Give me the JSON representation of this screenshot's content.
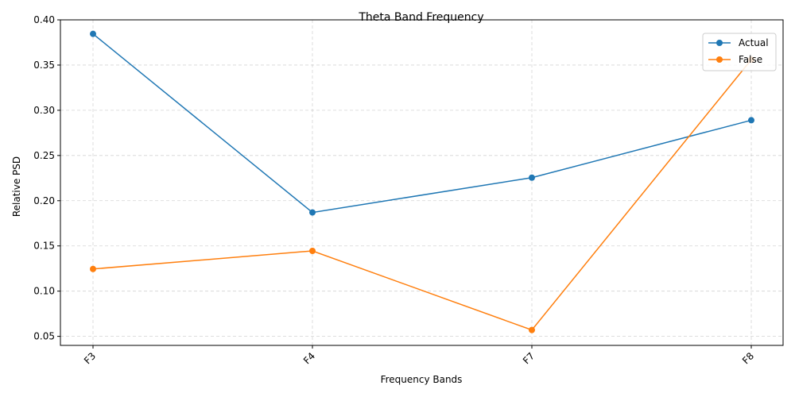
{
  "chart_data": {
    "type": "line",
    "title": "Theta Band Frequency",
    "xlabel": "Frequency Bands",
    "ylabel": "Relative PSD",
    "categories": [
      "F3",
      "F4",
      "F7",
      "F8"
    ],
    "series": [
      {
        "name": "Actual",
        "values": [
          0.3845,
          0.187,
          0.2255,
          0.289
        ],
        "color": "#1f77b4"
      },
      {
        "name": "False",
        "values": [
          0.1245,
          0.1445,
          0.057,
          0.356
        ],
        "color": "#ff7f0e"
      }
    ],
    "ylim": [
      0.04,
      0.4
    ],
    "yticks": [
      "0.05",
      "0.10",
      "0.15",
      "0.20",
      "0.25",
      "0.30",
      "0.35",
      "0.40"
    ],
    "grid": true,
    "legend_position": "top-right",
    "marker": "circle"
  }
}
